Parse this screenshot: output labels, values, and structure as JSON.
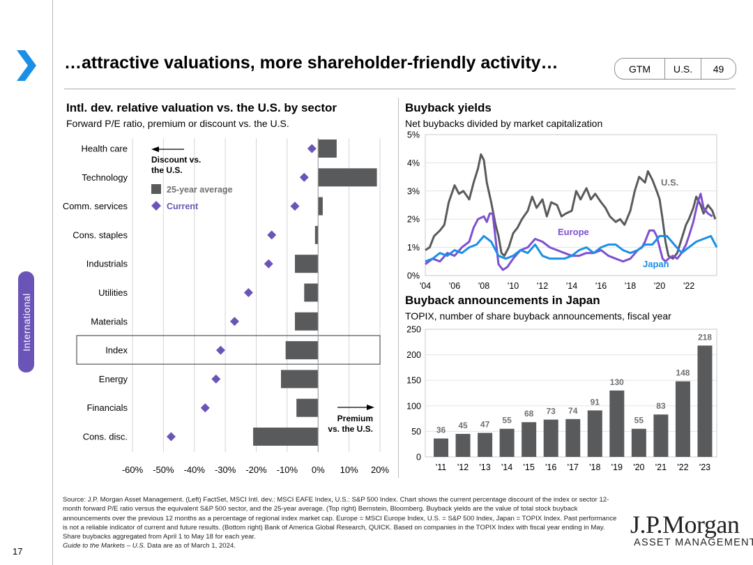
{
  "header": {
    "title": "…attractive valuations, more shareholder-friendly activity…",
    "badge": [
      "GTM",
      "U.S.",
      "49"
    ]
  },
  "sidebar": {
    "tab_label": "International",
    "page_number": "17"
  },
  "colors": {
    "accent": "#6b54b8",
    "bar": "#595a5c",
    "us_line": "#595a5c",
    "europe": "#7e4fcf",
    "japan": "#1a8fe6",
    "arrow_icon": "#1a8fe6"
  },
  "chart_data": [
    {
      "type": "bar",
      "title": "Intl. dev. relative valuation vs. the U.S. by sector",
      "subtitle": "Forward P/E ratio, premium or discount vs. the U.S.",
      "orientation": "horizontal",
      "categories": [
        "Health care",
        "Technology",
        "Comm. services",
        "Cons. staples",
        "Industrials",
        "Utilities",
        "Materials",
        "Index",
        "Energy",
        "Financials",
        "Cons. disc."
      ],
      "highlighted_category": "Index",
      "series": [
        {
          "name": "25-year average",
          "marker": "bar",
          "values": [
            6,
            19,
            1.5,
            -1,
            -7.5,
            -4.5,
            -7.5,
            -10.5,
            -12,
            -7,
            -21
          ]
        },
        {
          "name": "Current",
          "marker": "diamond",
          "values": [
            -2,
            -4.5,
            -7.5,
            -15,
            -16,
            -22.5,
            -27,
            -31.5,
            -33,
            -36.5,
            -47.5
          ]
        }
      ],
      "xlim": [
        -60,
        20
      ],
      "xticks": [
        "-60%",
        "-50%",
        "-40%",
        "-30%",
        "-20%",
        "-10%",
        "0%",
        "10%",
        "20%"
      ],
      "annotations": {
        "discount": "Discount vs. the U.S.",
        "premium": "Premium vs. the U.S."
      }
    },
    {
      "type": "line",
      "title": "Buyback yields",
      "subtitle": "Net buybacks divided by market capitalization",
      "xlim": [
        2004,
        2023.9
      ],
      "ylim": [
        0,
        5
      ],
      "xticks": [
        "'04",
        "'06",
        "'08",
        "'10",
        "'12",
        "'14",
        "'16",
        "'18",
        "'20",
        "'22"
      ],
      "yticks": [
        "0%",
        "1%",
        "2%",
        "3%",
        "4%",
        "5%"
      ],
      "series": [
        {
          "name": "U.S.",
          "x": [
            2004.0,
            2004.3,
            2004.6,
            2005.0,
            2005.3,
            2005.6,
            2006.0,
            2006.3,
            2006.6,
            2007.0,
            2007.3,
            2007.6,
            2007.8,
            2008.0,
            2008.2,
            2008.5,
            2008.8,
            2009.0,
            2009.2,
            2009.4,
            2009.7,
            2010.0,
            2010.3,
            2010.6,
            2011.0,
            2011.3,
            2011.6,
            2012.0,
            2012.3,
            2012.6,
            2013.0,
            2013.3,
            2013.6,
            2014.0,
            2014.3,
            2014.6,
            2015.0,
            2015.3,
            2015.6,
            2016.0,
            2016.3,
            2016.6,
            2017.0,
            2017.3,
            2017.6,
            2018.0,
            2018.3,
            2018.6,
            2019.0,
            2019.2,
            2019.5,
            2019.8,
            2020.0,
            2020.2,
            2020.4,
            2020.6,
            2020.9,
            2021.2,
            2021.5,
            2021.8,
            2022.0,
            2022.3,
            2022.5,
            2022.8,
            2023.0,
            2023.3,
            2023.6,
            2023.8
          ],
          "values": [
            0.9,
            1.0,
            1.4,
            1.6,
            1.8,
            2.6,
            3.2,
            2.9,
            3.0,
            2.7,
            3.3,
            3.8,
            4.3,
            4.1,
            3.3,
            2.6,
            1.8,
            1.4,
            0.8,
            0.7,
            1.0,
            1.5,
            1.7,
            2.0,
            2.3,
            2.8,
            2.4,
            2.7,
            2.1,
            2.6,
            2.5,
            2.1,
            2.2,
            2.3,
            3.0,
            2.7,
            3.1,
            2.7,
            2.9,
            2.6,
            2.4,
            2.1,
            1.9,
            2.0,
            1.8,
            2.3,
            3.0,
            3.5,
            3.3,
            3.7,
            3.4,
            3.0,
            2.7,
            2.0,
            1.2,
            0.7,
            0.6,
            0.8,
            1.3,
            1.8,
            2.0,
            2.4,
            2.8,
            2.5,
            2.2,
            2.5,
            2.3,
            2.0
          ]
        },
        {
          "name": "Europe",
          "x": [
            2004.0,
            2004.5,
            2005.0,
            2005.5,
            2006.0,
            2006.5,
            2007.0,
            2007.3,
            2007.6,
            2008.0,
            2008.2,
            2008.4,
            2008.6,
            2008.8,
            2009.0,
            2009.3,
            2009.6,
            2010.0,
            2010.5,
            2011.0,
            2011.5,
            2012.0,
            2012.5,
            2013.0,
            2013.5,
            2014.0,
            2014.5,
            2015.0,
            2015.5,
            2016.0,
            2016.5,
            2017.0,
            2017.5,
            2018.0,
            2018.5,
            2018.8,
            2019.0,
            2019.3,
            2019.6,
            2019.8,
            2020.0,
            2020.2,
            2020.4,
            2020.6,
            2020.9,
            2021.2,
            2021.5,
            2021.8,
            2022.0,
            2022.3,
            2022.6,
            2022.8,
            2023.0,
            2023.3,
            2023.6
          ],
          "values": [
            0.4,
            0.6,
            0.5,
            0.8,
            0.7,
            1.0,
            1.2,
            1.7,
            2.0,
            2.1,
            1.9,
            2.2,
            2.2,
            1.3,
            0.4,
            0.2,
            0.3,
            0.6,
            0.9,
            1.0,
            1.3,
            1.2,
            1.0,
            0.9,
            0.8,
            0.7,
            0.7,
            0.8,
            0.8,
            0.9,
            0.7,
            0.6,
            0.5,
            0.6,
            0.9,
            1.0,
            1.2,
            1.6,
            1.6,
            1.4,
            1.0,
            0.6,
            0.5,
            0.6,
            0.7,
            0.6,
            0.8,
            1.1,
            1.4,
            1.9,
            2.6,
            2.9,
            2.4,
            2.2,
            2.1
          ]
        },
        {
          "name": "Japan",
          "x": [
            2004.0,
            2004.5,
            2005.0,
            2005.5,
            2006.0,
            2006.5,
            2007.0,
            2007.5,
            2008.0,
            2008.5,
            2009.0,
            2009.5,
            2010.0,
            2010.5,
            2011.0,
            2011.5,
            2012.0,
            2012.5,
            2013.0,
            2013.5,
            2014.0,
            2014.5,
            2015.0,
            2015.5,
            2016.0,
            2016.5,
            2017.0,
            2017.5,
            2018.0,
            2018.5,
            2019.0,
            2019.5,
            2020.0,
            2020.5,
            2021.0,
            2021.5,
            2022.0,
            2022.5,
            2023.0,
            2023.5,
            2023.9
          ],
          "values": [
            0.5,
            0.6,
            0.8,
            0.7,
            0.9,
            0.8,
            1.0,
            1.1,
            1.4,
            1.2,
            0.7,
            0.6,
            0.7,
            0.9,
            0.8,
            1.1,
            0.7,
            0.6,
            0.6,
            0.6,
            0.7,
            0.9,
            1.0,
            0.8,
            1.0,
            1.1,
            1.1,
            0.9,
            0.8,
            0.9,
            1.1,
            1.1,
            1.4,
            1.4,
            1.1,
            0.8,
            1.0,
            1.2,
            1.3,
            1.4,
            1.0
          ]
        }
      ]
    },
    {
      "type": "bar",
      "title": "Buyback announcements in Japan",
      "subtitle": "TOPIX, number of share buyback announcements, fiscal year",
      "categories": [
        "'11",
        "'12",
        "'13",
        "'14",
        "'15",
        "'16",
        "'17",
        "'18",
        "'19",
        "'20",
        "'21",
        "'22",
        "'23"
      ],
      "values": [
        36,
        45,
        47,
        55,
        68,
        73,
        74,
        91,
        130,
        55,
        83,
        148,
        218
      ],
      "ylim": [
        0,
        250
      ],
      "yticks": [
        "0",
        "50",
        "100",
        "150",
        "200",
        "250"
      ]
    }
  ],
  "footnote": {
    "text": "Source: J.P. Morgan Asset Management. (Left) FactSet, MSCI Intl. dev.: MSCI EAFE Index, U.S.: S&P 500 Index. Chart shows the current percentage discount of the index or sector 12-month forward P/E ratio versus the equivalent S&P 500 sector, and the 25-year average. (Top right) Bernstein, Bloomberg. Buyback yields are the value of total stock buyback announcements over the previous 12 months as a percentage of regional index market cap. Europe = MSCI Europe Index, U.S. = S&P 500 Index, Japan = TOPIX Index. Past performance is not a reliable indicator of current and future results. (Bottom right) Bank of America Global Research, QUICK. Based on companies in the TOPIX Index with fiscal year ending in May. Share buybacks aggregated from April 1 to May 18 for each year.",
    "guide": "Guide to the Markets – U.S.",
    "date": " Data are as of March 1, 2024."
  },
  "logo": {
    "name": "J.P.Morgan",
    "sub": "ASSET MANAGEMENT"
  }
}
